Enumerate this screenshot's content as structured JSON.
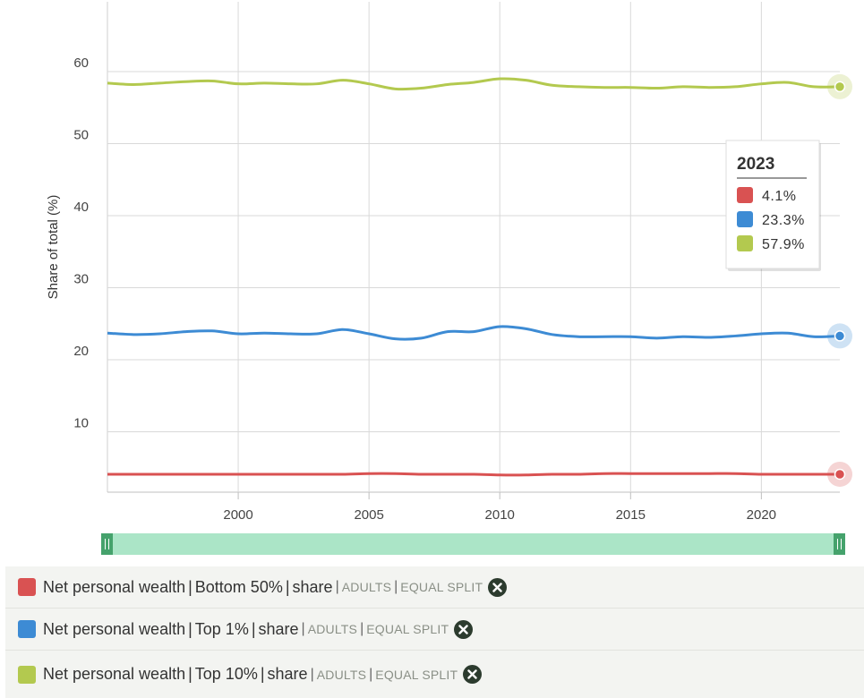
{
  "chart_data": {
    "type": "line",
    "ylabel": "Share of total (%)",
    "xlabel": "",
    "xlim": [
      1995,
      2023
    ],
    "ylim": [
      0,
      70
    ],
    "yticks": [
      10,
      20,
      30,
      40,
      50,
      60
    ],
    "xticks": [
      2000,
      2005,
      2010,
      2015,
      2020
    ],
    "grid": true,
    "x": [
      1995,
      1996,
      1997,
      1998,
      1999,
      2000,
      2001,
      2002,
      2003,
      2004,
      2005,
      2006,
      2007,
      2008,
      2009,
      2010,
      2011,
      2012,
      2013,
      2014,
      2015,
      2016,
      2017,
      2018,
      2019,
      2020,
      2021,
      2022,
      2023
    ],
    "series": [
      {
        "name": "Net personal wealth | Bottom 50% | share",
        "color": "#d95252",
        "values": [
          4.1,
          4.1,
          4.1,
          4.1,
          4.1,
          4.1,
          4.1,
          4.1,
          4.1,
          4.1,
          4.2,
          4.2,
          4.1,
          4.1,
          4.1,
          4.0,
          4.0,
          4.1,
          4.1,
          4.2,
          4.2,
          4.2,
          4.2,
          4.2,
          4.2,
          4.1,
          4.1,
          4.1,
          4.1
        ]
      },
      {
        "name": "Net personal wealth | Top 1% | share",
        "color": "#3d8bd4",
        "values": [
          23.7,
          23.5,
          23.6,
          23.9,
          24.0,
          23.6,
          23.7,
          23.6,
          23.6,
          24.2,
          23.6,
          22.9,
          23.0,
          23.9,
          23.9,
          24.6,
          24.3,
          23.5,
          23.2,
          23.2,
          23.2,
          23.0,
          23.2,
          23.1,
          23.3,
          23.6,
          23.7,
          23.2,
          23.3
        ]
      },
      {
        "name": "Net personal wealth | Top 10% | share",
        "color": "#b3c94f",
        "values": [
          58.4,
          58.2,
          58.4,
          58.6,
          58.7,
          58.3,
          58.4,
          58.3,
          58.3,
          58.8,
          58.3,
          57.6,
          57.7,
          58.2,
          58.5,
          59.0,
          58.8,
          58.1,
          57.9,
          57.8,
          57.8,
          57.7,
          57.9,
          57.8,
          57.9,
          58.3,
          58.5,
          57.9,
          57.9
        ]
      }
    ],
    "tooltip": {
      "year": "2023",
      "values": [
        "4.1%",
        "23.3%",
        "57.9%"
      ]
    }
  },
  "legend": [
    {
      "color": "#d95252",
      "parts": [
        "Net personal wealth",
        "Bottom 50%",
        "share"
      ],
      "tags": [
        "ADULTS",
        "EQUAL SPLIT"
      ]
    },
    {
      "color": "#3d8bd4",
      "parts": [
        "Net personal wealth",
        "Top 1%",
        "share"
      ],
      "tags": [
        "ADULTS",
        "EQUAL SPLIT"
      ]
    },
    {
      "color": "#b3c94f",
      "parts": [
        "Net personal wealth",
        "Top 10%",
        "share"
      ],
      "tags": [
        "ADULTS",
        "EQUAL SPLIT"
      ]
    }
  ],
  "icons": {
    "remove": "close-icon",
    "handle": "drag-handle-icon"
  }
}
